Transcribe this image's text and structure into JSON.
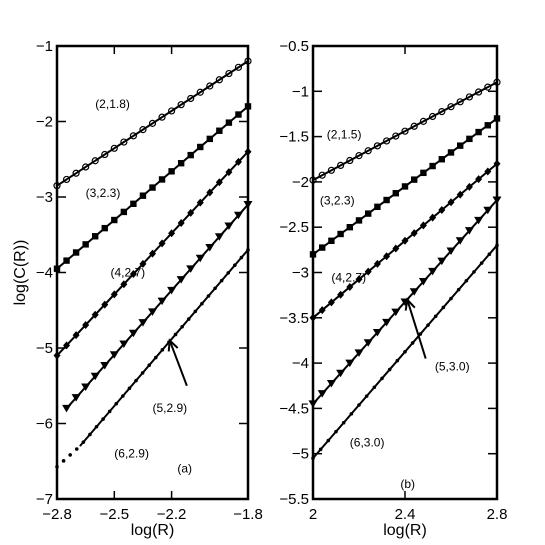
{
  "chart_data": [
    {
      "type": "scatter",
      "panel_label": "(a)",
      "xlabel": "log(R)",
      "ylabel": "log(C(R))",
      "xlim": [
        -2.8,
        -1.8
      ],
      "ylim": [
        -7,
        -1
      ],
      "xticks": [
        -2.8,
        -2.5,
        -2.2,
        -1.8
      ],
      "xtick_labels": [
        "−2.8",
        "−2.5",
        "−2.2",
        "−1.8"
      ],
      "yticks": [
        -7,
        -6,
        -5,
        -4,
        -3,
        -2,
        -1
      ],
      "ytick_labels": [
        "−7",
        "−6",
        "−5",
        "−4",
        "−3",
        "−2",
        "−1"
      ],
      "grid": false,
      "series": [
        {
          "name": "(2,1.8)",
          "marker": "circle",
          "fit": {
            "x": [
              -2.8,
              -1.8
            ],
            "y": [
              -2.85,
              -1.2
            ]
          },
          "points": {
            "x_start": -2.8,
            "x_end": -1.8,
            "count": 21
          }
        },
        {
          "name": "(3,2.3)",
          "marker": "square",
          "fit": {
            "x": [
              -2.8,
              -1.8
            ],
            "y": [
              -3.95,
              -1.8
            ]
          },
          "points": {
            "x_start": -2.8,
            "x_end": -1.8,
            "count": 21
          }
        },
        {
          "name": "(4,2.7)",
          "marker": "diamond",
          "fit": {
            "x": [
              -2.8,
              -1.8
            ],
            "y": [
              -5.1,
              -2.4
            ]
          },
          "points": {
            "x_start": -2.8,
            "x_end": -1.8,
            "count": 21
          }
        },
        {
          "name": "(5,2.9)",
          "marker": "triangle-down",
          "fit": {
            "x": [
              -2.75,
              -1.8
            ],
            "y": [
              -5.8,
              -3.1
            ]
          },
          "points": {
            "x_start": -2.75,
            "x_end": -1.8,
            "count": 20
          }
        },
        {
          "name": "(6,2.9)",
          "marker": "dot",
          "fit": {
            "x": [
              -2.68,
              -1.8
            ],
            "y": [
              -6.3,
              -3.7
            ]
          },
          "points": {
            "x_start": -2.8,
            "x_end": -1.8,
            "count": 30
          }
        }
      ],
      "annotations": [
        {
          "text": "(2,1.8)",
          "x": -2.6,
          "y": -1.82
        },
        {
          "text": "(3,2.3)",
          "x": -2.65,
          "y": -3.0
        },
        {
          "text": "(4,2.7)",
          "x": -2.52,
          "y": -4.05
        },
        {
          "text": "(5,2.9)",
          "x": -2.3,
          "y": -5.85
        },
        {
          "text": "(6,2.9)",
          "x": -2.5,
          "y": -6.45
        },
        {
          "text": "(a)",
          "x": -2.17,
          "y": -6.65
        }
      ],
      "arrow": {
        "from": {
          "x": -2.12,
          "y": -5.5
        },
        "to": {
          "x": -2.21,
          "y": -4.9
        }
      }
    },
    {
      "type": "scatter",
      "panel_label": "(b)",
      "xlabel": "log(R)",
      "ylabel": "",
      "xlim": [
        2,
        2.8
      ],
      "ylim": [
        -5.5,
        -0.5
      ],
      "xticks": [
        2,
        2.4,
        2.8
      ],
      "xtick_labels": [
        "2",
        "2.4",
        "2.8"
      ],
      "yticks": [
        -5.5,
        -5,
        -4.5,
        -4,
        -3.5,
        -3,
        -2.5,
        -2,
        -1.5,
        -1,
        -0.5
      ],
      "ytick_labels": [
        "−5.5",
        "−5",
        "−4.5",
        "−4",
        "−3.5",
        "−3",
        "−2.5",
        "−2",
        "−1.5",
        "−1",
        "−0.5"
      ],
      "grid": false,
      "series": [
        {
          "name": "(2,1.5)",
          "marker": "circle",
          "fit": {
            "x": [
              2.0,
              2.8
            ],
            "y": [
              -1.98,
              -0.9
            ]
          },
          "points": {
            "x_start": 2.0,
            "x_end": 2.8,
            "count": 21
          }
        },
        {
          "name": "(3,2.3)",
          "marker": "square",
          "fit": {
            "x": [
              2.0,
              2.8
            ],
            "y": [
              -2.8,
              -1.3
            ]
          },
          "points": {
            "x_start": 2.0,
            "x_end": 2.8,
            "count": 21
          }
        },
        {
          "name": "(4,2.7)",
          "marker": "diamond",
          "fit": {
            "x": [
              2.0,
              2.8
            ],
            "y": [
              -3.5,
              -1.8
            ]
          },
          "points": {
            "x_start": 2.0,
            "x_end": 2.8,
            "count": 21
          }
        },
        {
          "name": "(5,3.0)",
          "marker": "triangle-down",
          "fit": {
            "x": [
              2.0,
              2.8
            ],
            "y": [
              -4.45,
              -2.2
            ]
          },
          "points": {
            "x_start": 2.0,
            "x_end": 2.8,
            "count": 21
          }
        },
        {
          "name": "(6,3.0)",
          "marker": "dot",
          "fit": {
            "x": [
              2.0,
              2.8
            ],
            "y": [
              -5.05,
              -2.7
            ]
          },
          "points": {
            "x_start": 2.0,
            "x_end": 2.8,
            "count": 25
          }
        }
      ],
      "annotations": [
        {
          "text": "(2,1.5)",
          "x": 2.06,
          "y": -1.52
        },
        {
          "text": "(3,2.3)",
          "x": 2.03,
          "y": -2.25
        },
        {
          "text": "(4,2.7)",
          "x": 2.08,
          "y": -3.1
        },
        {
          "text": "(5,3.0)",
          "x": 2.53,
          "y": -4.08
        },
        {
          "text": "(6,3.0)",
          "x": 2.16,
          "y": -4.92
        },
        {
          "text": "(b)",
          "x": 2.38,
          "y": -5.38
        }
      ],
      "arrow": {
        "from": {
          "x": 2.49,
          "y": -3.95
        },
        "to": {
          "x": 2.41,
          "y": -3.3
        }
      }
    }
  ]
}
